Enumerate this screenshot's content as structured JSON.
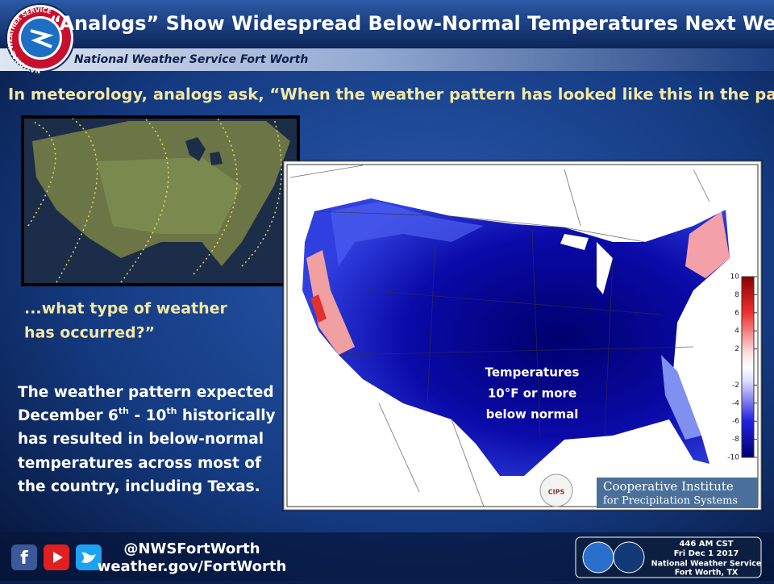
{
  "logo": {
    "ring_text": "NATIONAL WEATHER SERVICE"
  },
  "header": {
    "title": "“Analogs” Show Widespread Below-Normal Temperatures Next Week",
    "subtitle": "National Weather Service Fort Worth"
  },
  "question": "In meteorology, analogs ask, “When the weather pattern has looked like this in the past...",
  "answer": {
    "lines": [
      "...what type of weather",
      "has occurred?”"
    ]
  },
  "body": {
    "lines": [
      "The weather pattern expected",
      [
        "December 6",
        "th",
        " - 10",
        "th",
        " historically"
      ],
      "has resulted in below-normal",
      "temperatures across most of",
      "the country, including Texas."
    ]
  },
  "map": {
    "annotation": [
      "Temperatures",
      "10°F or more",
      "below normal"
    ],
    "colorbar_ticks": [
      10,
      8,
      6,
      4,
      2,
      -2,
      -4,
      -6,
      -8,
      -10
    ],
    "credit": {
      "badge": "CIPS",
      "lines": [
        "Cooperative Institute",
        "for Precipitation Systems"
      ]
    }
  },
  "footer": {
    "handle": "@NWSFortWorth",
    "url": "weather.gov/FortWorth",
    "stamp": [
      "446 AM CST",
      "Fri Dec 1 2017",
      "National Weather Service",
      "Fort Worth, TX"
    ]
  }
}
